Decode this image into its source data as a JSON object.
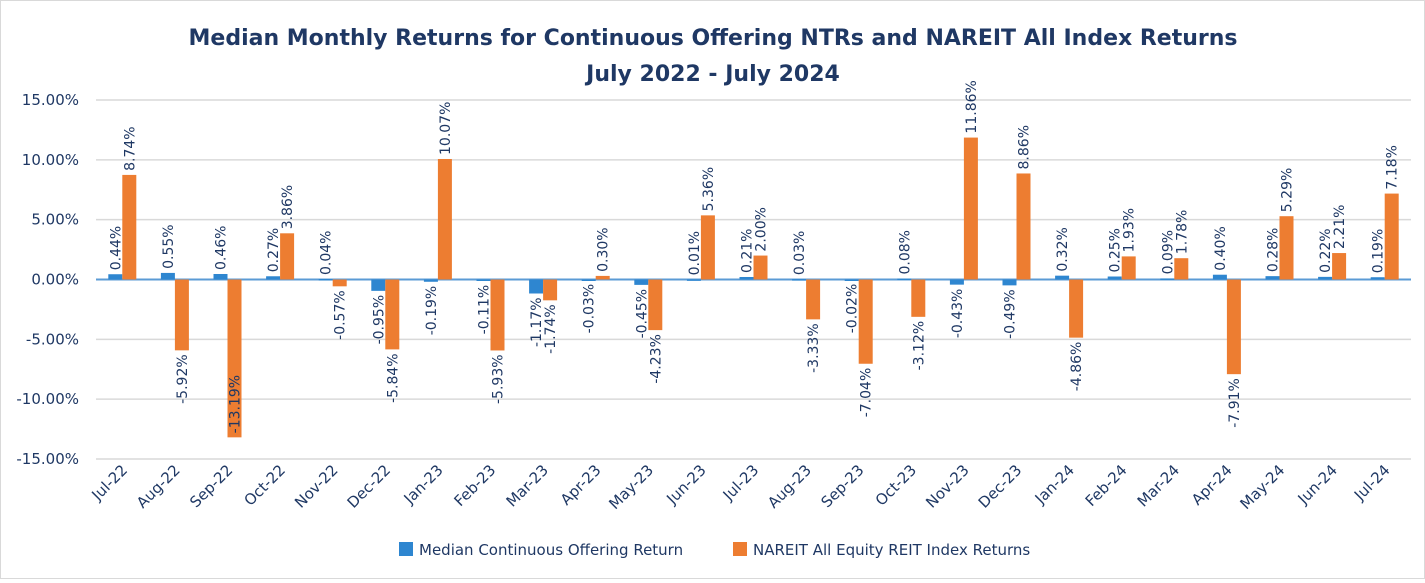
{
  "chart_data": {
    "type": "bar",
    "title": "Median Monthly Returns for Continuous Offering NTRs and NAREIT All Index Returns",
    "subtitle": "July 2022 - July 2024",
    "xlabel": "",
    "ylabel": "",
    "ylim": [
      -15,
      15
    ],
    "yticks": [
      "15.00%",
      "10.00%",
      "5.00%",
      "0.00%",
      "-5.00%",
      "-10.00%",
      "-15.00%"
    ],
    "grid": true,
    "legend": "bottom",
    "categories": [
      "Jul-22",
      "Aug-22",
      "Sep-22",
      "Oct-22",
      "Nov-22",
      "Dec-22",
      "Jan-23",
      "Feb-23",
      "Mar-23",
      "Apr-23",
      "May-23",
      "Jun-23",
      "Jul-23",
      "Aug-23",
      "Sep-23",
      "Oct-23",
      "Nov-23",
      "Dec-23",
      "Jan-24",
      "Feb-24",
      "Mar-24",
      "Apr-24",
      "May-24",
      "Jun-24",
      "Jul-24"
    ],
    "series": [
      {
        "name": "Median Continuous Offering Return",
        "color": "#2e86d0",
        "values": [
          0.44,
          0.55,
          0.46,
          0.27,
          0.04,
          -0.95,
          -0.19,
          -0.11,
          -1.17,
          -0.03,
          -0.45,
          0.01,
          0.21,
          0.03,
          -0.02,
          0.08,
          -0.43,
          -0.49,
          0.32,
          0.25,
          0.09,
          0.4,
          0.28,
          0.22,
          0.19
        ]
      },
      {
        "name": "NAREIT All Equity REIT Index Returns",
        "color": "#ed7d31",
        "values": [
          8.74,
          -5.92,
          -13.19,
          3.86,
          -0.57,
          -5.84,
          10.07,
          -5.93,
          -1.74,
          0.3,
          -4.23,
          5.36,
          2.0,
          -3.33,
          -7.04,
          -3.12,
          11.86,
          8.86,
          -4.86,
          1.93,
          1.78,
          -7.91,
          5.29,
          2.21,
          7.18
        ]
      }
    ]
  }
}
